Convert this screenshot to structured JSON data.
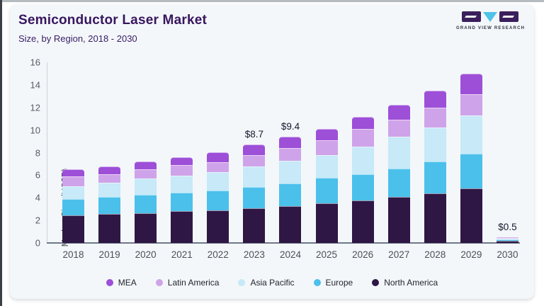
{
  "header": {
    "title": "Semiconductor Laser Market",
    "subtitle": "Size, by Region, 2018 - 2030",
    "logo_text": "GRAND VIEW RESEARCH"
  },
  "chart_data": {
    "type": "bar",
    "stacked": true,
    "title": "Semiconductor Laser Market",
    "subtitle": "Size, by Region, 2018 - 2030",
    "xlabel": "",
    "ylabel": "Market Size (US$B)",
    "ylim": [
      0,
      16
    ],
    "yticks": [
      0,
      2,
      4,
      6,
      8,
      10,
      12,
      14,
      16
    ],
    "grid": false,
    "legend_position": "bottom",
    "categories": [
      "2018",
      "2019",
      "2020",
      "2021",
      "2022",
      "2023",
      "2024",
      "2025",
      "2026",
      "2027",
      "2028",
      "2029",
      "2030"
    ],
    "series": [
      {
        "name": "North America",
        "color": "#2e1745",
        "values": [
          2.45,
          2.55,
          2.65,
          2.8,
          2.9,
          3.05,
          3.25,
          3.5,
          3.75,
          4.05,
          4.4,
          4.85,
          0.2
        ]
      },
      {
        "name": "Europe",
        "color": "#4bc0eb",
        "values": [
          1.45,
          1.55,
          1.6,
          1.65,
          1.75,
          1.9,
          2.05,
          2.3,
          2.35,
          2.55,
          2.8,
          3.05,
          0.1
        ]
      },
      {
        "name": "Asia Pacific",
        "color": "#c7e9f8",
        "values": [
          1.15,
          1.25,
          1.45,
          1.5,
          1.6,
          1.8,
          1.95,
          2.0,
          2.45,
          2.8,
          3.05,
          3.4,
          0.05
        ]
      },
      {
        "name": "Latin America",
        "color": "#cfa3e9",
        "values": [
          0.85,
          0.75,
          0.8,
          0.95,
          0.9,
          1.05,
          1.15,
          1.3,
          1.55,
          1.5,
          1.75,
          1.9,
          0.1
        ]
      },
      {
        "name": "MEA",
        "color": "#9d4fd8",
        "values": [
          0.6,
          0.7,
          0.7,
          0.7,
          0.9,
          0.9,
          1.0,
          1.0,
          1.05,
          1.35,
          1.5,
          1.8,
          0.05
        ]
      }
    ],
    "totals": [
      6.5,
      6.8,
      7.2,
      7.6,
      8.05,
      8.7,
      9.4,
      10.1,
      11.15,
      12.25,
      13.5,
      15.0,
      0.5
    ],
    "annotations": [
      {
        "category": "2023",
        "label": "$8.7"
      },
      {
        "category": "2024",
        "label": "$9.4"
      },
      {
        "category": "2030",
        "label": "$0.5"
      }
    ],
    "legend_order": [
      "MEA",
      "Latin America",
      "Asia Pacific",
      "Europe",
      "North America"
    ]
  }
}
